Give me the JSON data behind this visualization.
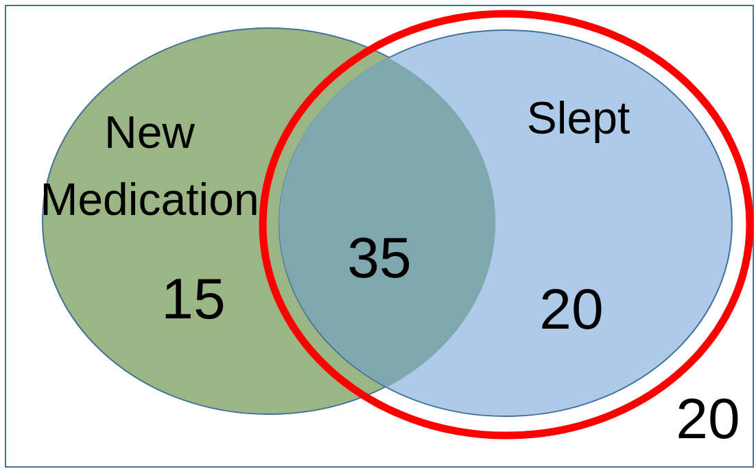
{
  "chart_data": {
    "type": "other",
    "categories": [
      "New Medication",
      null,
      "Slept",
      null
    ],
    "values": [
      15,
      35,
      20,
      20
    ],
    "data_labels": true,
    "colors": [
      "#9bb584",
      "#7ea8ae",
      "#adcbe9",
      "#ffffff"
    ]
  }
}
